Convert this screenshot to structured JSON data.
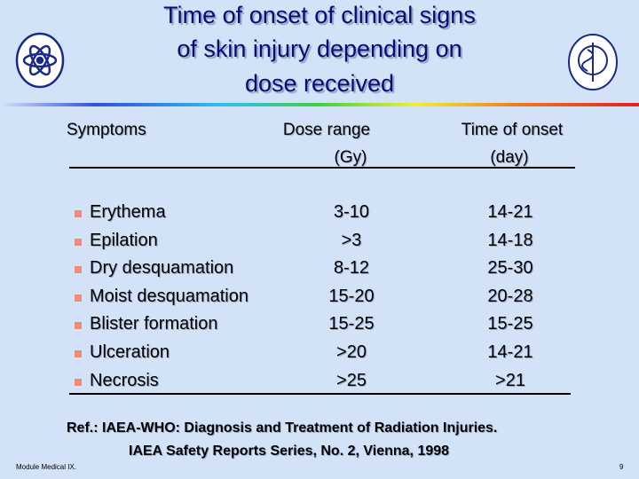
{
  "header": {
    "title_lines": [
      "Time of onset of clinical signs",
      "of skin injury depending on",
      "dose received"
    ]
  },
  "table": {
    "columns": [
      {
        "lines": [
          "Symptoms"
        ]
      },
      {
        "lines": [
          "Dose range",
          "(Gy)"
        ]
      },
      {
        "lines": [
          "Time of onset",
          "(day)"
        ]
      }
    ],
    "rows": [
      [
        "Erythema",
        "3-10",
        "14-21"
      ],
      [
        "Epilation",
        ">3",
        "14-18"
      ],
      [
        "Dry desquamation",
        "8-12",
        "25-30"
      ],
      [
        "Moist desquamation",
        "15-20",
        "20-28"
      ],
      [
        "Blister formation",
        "15-25",
        "15-25"
      ],
      [
        "Ulceration",
        ">20",
        "14-21"
      ],
      [
        "Necrosis",
        ">25",
        ">21"
      ]
    ]
  },
  "reference": {
    "lines": [
      "Ref.: IAEA-WHO: Diagnosis and Treatment of Radiation Injuries.",
      "IAEA Safety Reports Series, No. 2, Vienna, 1998"
    ]
  },
  "footer": {
    "module": "Module Medical IX.",
    "page": "9"
  }
}
